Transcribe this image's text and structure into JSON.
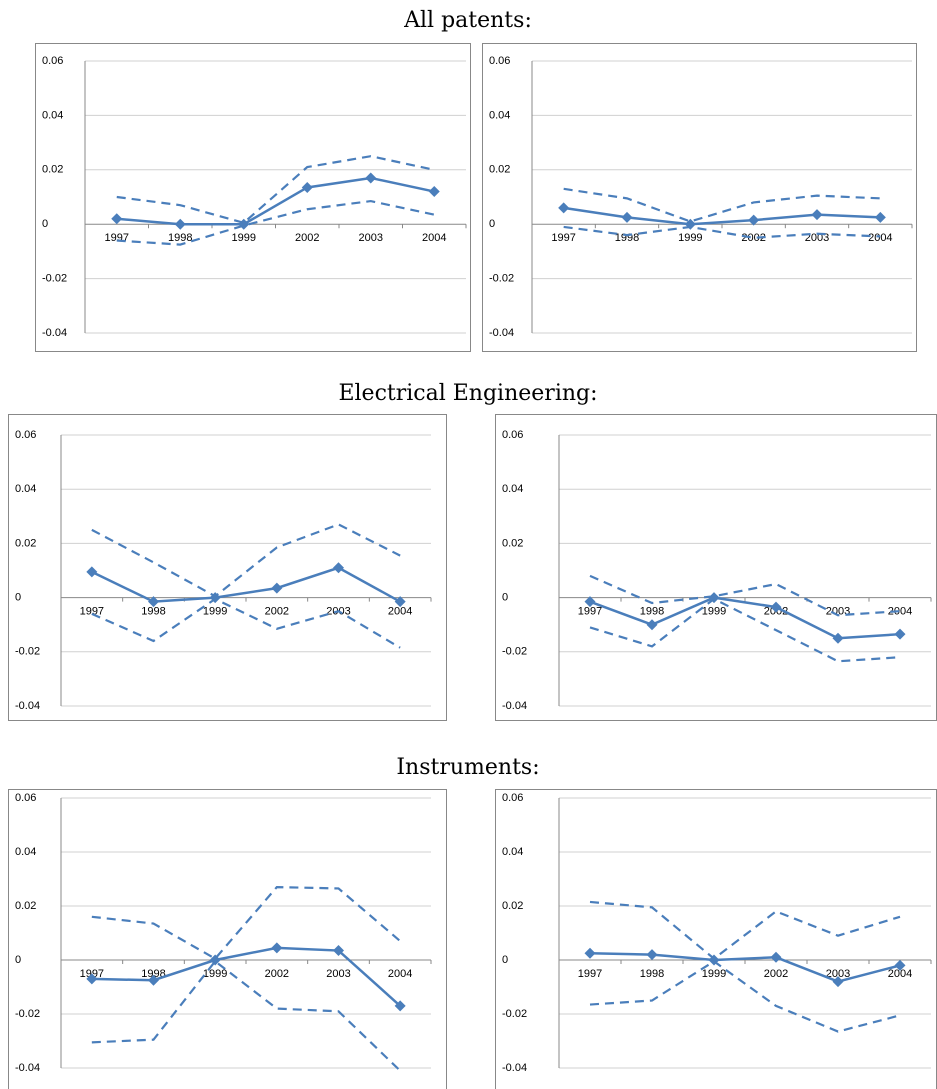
{
  "headings": [
    "All patents:",
    "Electrical Engineering:",
    "Instruments:"
  ],
  "chart_data": [
    {
      "type": "line",
      "categories": [
        "1997",
        "1998",
        "1999",
        "2002",
        "2003",
        "2004"
      ],
      "ylim": [
        -0.04,
        0.06
      ],
      "yticks": [
        -0.04,
        -0.02,
        0,
        0.02,
        0.04,
        0.06
      ],
      "grid": true,
      "series": [
        {
          "color": "#4a7ebb",
          "dashed": false,
          "marker": "diamond",
          "values": [
            0.002,
            0,
            0,
            0.0135,
            0.017,
            0.012
          ]
        },
        {
          "color": "#4a7ebb",
          "dashed": true,
          "values": [
            0.01,
            0.007,
            0.0005,
            0.021,
            0.025,
            0.02
          ]
        },
        {
          "color": "#4a7ebb",
          "dashed": true,
          "values": [
            -0.006,
            -0.0075,
            -0.0005,
            0.0055,
            0.0085,
            0.0035
          ]
        }
      ]
    },
    {
      "type": "line",
      "categories": [
        "1997",
        "1998",
        "1999",
        "2002",
        "2003",
        "2004"
      ],
      "ylim": [
        -0.04,
        0.06
      ],
      "yticks": [
        -0.04,
        -0.02,
        0,
        0.02,
        0.04,
        0.06
      ],
      "grid": true,
      "series": [
        {
          "color": "#4a7ebb",
          "dashed": false,
          "marker": "diamond",
          "values": [
            0.006,
            0.0025,
            0,
            0.0015,
            0.0035,
            0.0025
          ]
        },
        {
          "color": "#4a7ebb",
          "dashed": true,
          "values": [
            0.013,
            0.0095,
            0.001,
            0.008,
            0.0105,
            0.0095
          ]
        },
        {
          "color": "#4a7ebb",
          "dashed": true,
          "values": [
            -0.001,
            -0.004,
            -0.001,
            -0.005,
            -0.0035,
            -0.0045
          ]
        }
      ]
    },
    {
      "type": "line",
      "categories": [
        "1997",
        "1998",
        "1999",
        "2002",
        "2003",
        "2004"
      ],
      "ylim": [
        -0.04,
        0.06
      ],
      "yticks": [
        -0.04,
        -0.02,
        0,
        0.02,
        0.04,
        0.06
      ],
      "grid": true,
      "series": [
        {
          "color": "#4a7ebb",
          "dashed": false,
          "marker": "diamond",
          "values": [
            0.0095,
            -0.0015,
            0,
            0.0035,
            0.011,
            -0.0015
          ]
        },
        {
          "color": "#4a7ebb",
          "dashed": true,
          "values": [
            0.025,
            0.013,
            0.0005,
            0.0185,
            0.027,
            0.0155
          ]
        },
        {
          "color": "#4a7ebb",
          "dashed": true,
          "values": [
            -0.006,
            -0.016,
            -0.0005,
            -0.0115,
            -0.005,
            -0.0185
          ]
        }
      ]
    },
    {
      "type": "line",
      "categories": [
        "1997",
        "1998",
        "1999",
        "2002",
        "2003",
        "2004"
      ],
      "ylim": [
        -0.04,
        0.06
      ],
      "yticks": [
        -0.04,
        -0.02,
        0,
        0.02,
        0.04,
        0.06
      ],
      "grid": true,
      "series": [
        {
          "color": "#4a7ebb",
          "dashed": false,
          "marker": "diamond",
          "values": [
            -0.0015,
            -0.01,
            0,
            -0.0035,
            -0.015,
            -0.0135
          ]
        },
        {
          "color": "#4a7ebb",
          "dashed": true,
          "values": [
            0.008,
            -0.002,
            0.0005,
            0.005,
            -0.0065,
            -0.005
          ]
        },
        {
          "color": "#4a7ebb",
          "dashed": true,
          "values": [
            -0.011,
            -0.018,
            -0.0005,
            -0.012,
            -0.0235,
            -0.022
          ]
        }
      ]
    },
    {
      "type": "line",
      "categories": [
        "1997",
        "1998",
        "1999",
        "2002",
        "2003",
        "2004"
      ],
      "ylim": [
        -0.04,
        0.06
      ],
      "yticks": [
        -0.04,
        -0.02,
        0,
        0.02,
        0.04,
        0.06
      ],
      "grid": true,
      "series": [
        {
          "color": "#4a7ebb",
          "dashed": false,
          "marker": "diamond",
          "values": [
            -0.007,
            -0.0075,
            0,
            0.0045,
            0.0035,
            -0.017
          ]
        },
        {
          "color": "#4a7ebb",
          "dashed": true,
          "values": [
            0.016,
            0.0135,
            0.0005,
            0.027,
            0.0265,
            0.007
          ]
        },
        {
          "color": "#4a7ebb",
          "dashed": true,
          "values": [
            -0.0305,
            -0.0295,
            -0.0005,
            -0.018,
            -0.019,
            -0.041
          ]
        }
      ]
    },
    {
      "type": "line",
      "categories": [
        "1997",
        "1998",
        "1999",
        "2002",
        "2003",
        "2004"
      ],
      "ylim": [
        -0.04,
        0.06
      ],
      "yticks": [
        -0.04,
        -0.02,
        0,
        0.02,
        0.04,
        0.06
      ],
      "grid": true,
      "series": [
        {
          "color": "#4a7ebb",
          "dashed": false,
          "marker": "diamond",
          "values": [
            0.0025,
            0.002,
            0,
            0.001,
            -0.008,
            -0.002
          ]
        },
        {
          "color": "#4a7ebb",
          "dashed": true,
          "values": [
            0.0215,
            0.0195,
            0.0005,
            0.018,
            0.009,
            0.016
          ]
        },
        {
          "color": "#4a7ebb",
          "dashed": true,
          "values": [
            -0.0165,
            -0.015,
            -0.0005,
            -0.017,
            -0.0265,
            -0.0205
          ]
        }
      ]
    }
  ]
}
